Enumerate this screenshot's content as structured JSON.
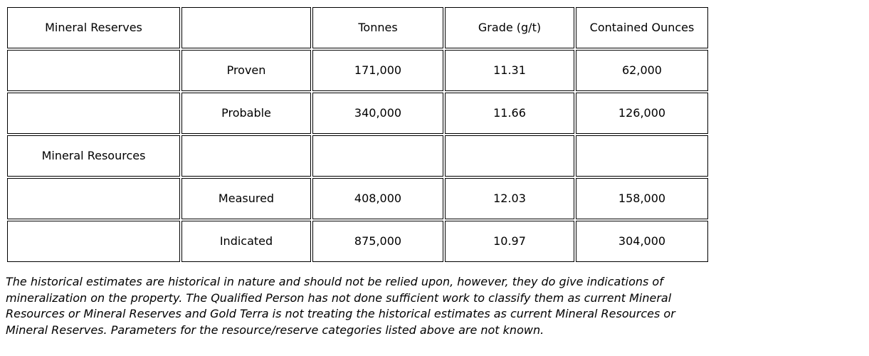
{
  "table": {
    "rows": [
      [
        "Mineral Reserves",
        "",
        "Tonnes",
        "Grade (g/t)",
        "Contained Ounces"
      ],
      [
        "",
        "Proven",
        "171,000",
        "11.31",
        "62,000"
      ],
      [
        "",
        "Probable",
        "340,000",
        "11.66",
        "126,000"
      ],
      [
        "Mineral Resources",
        "",
        "",
        "",
        ""
      ],
      [
        "",
        "Measured",
        "408,000",
        "12.03",
        "158,000"
      ],
      [
        "",
        "Indicated",
        "875,000",
        "10.97",
        "304,000"
      ]
    ]
  },
  "disclaimer": "The historical estimates are historical in nature and should not be relied upon, however, they do give indications of mineralization on the property. The Qualified Person has not done sufficient work to classify them as current Mineral Resources or Mineral Reserves and Gold Terra is not treating the historical estimates as current Mineral Resources or Mineral Reserves. Parameters for the resource/reserve categories listed above are not known."
}
